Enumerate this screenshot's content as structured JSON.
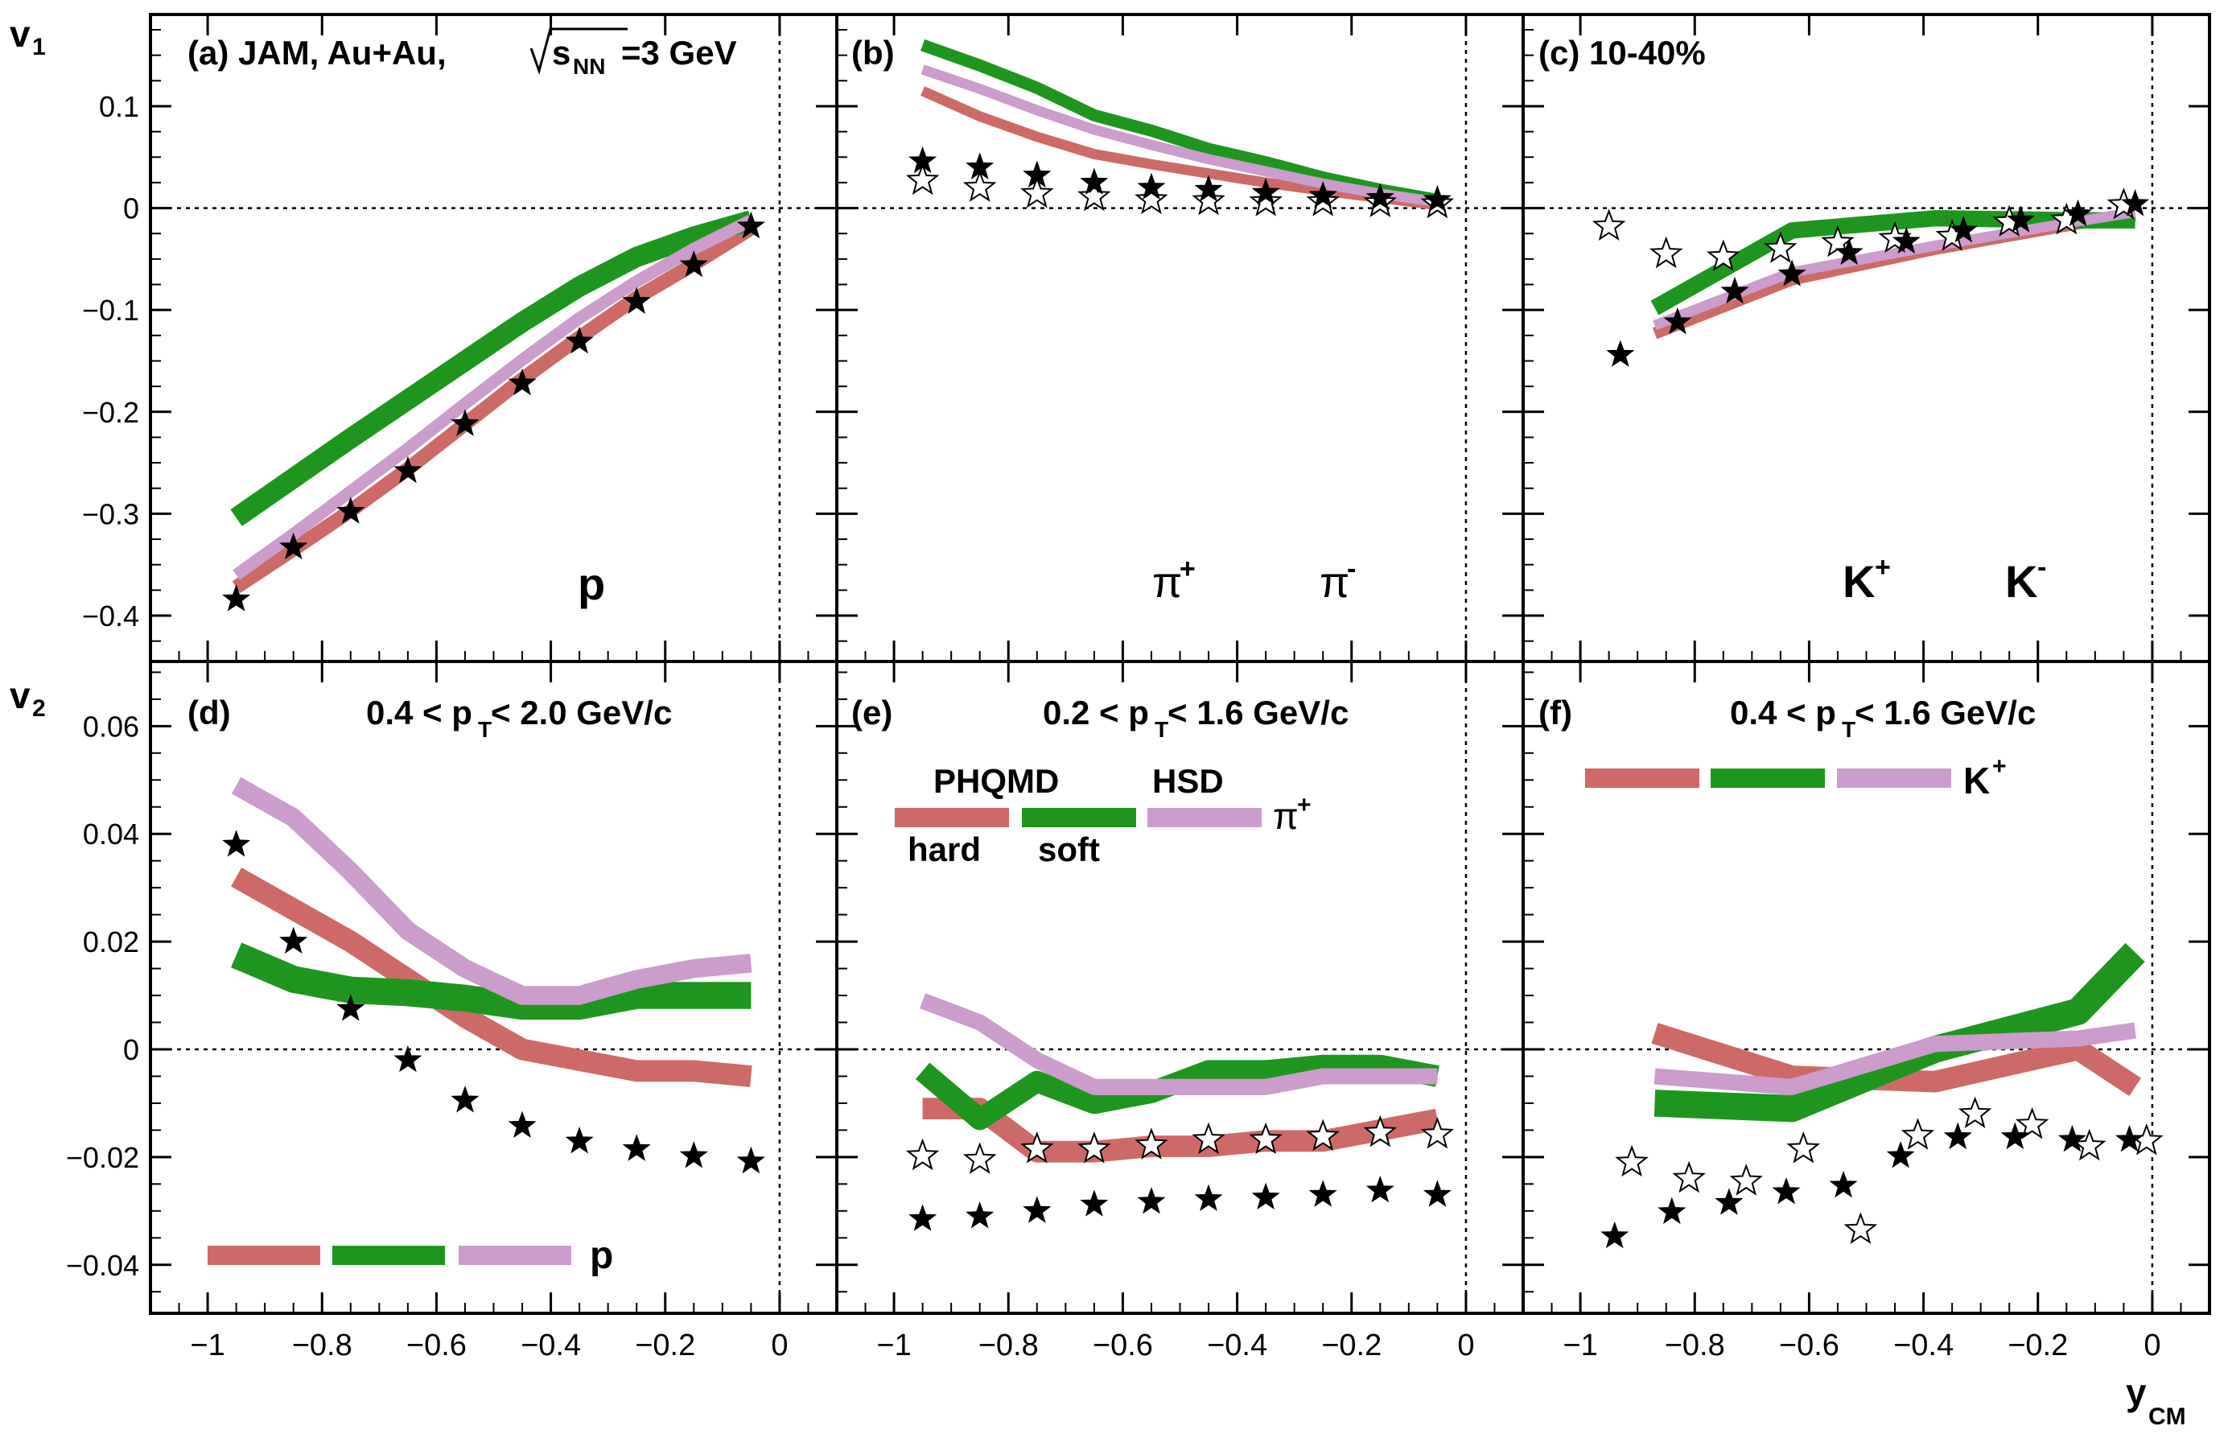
{
  "figure": {
    "y_axis_labels": {
      "v1": "v",
      "v1_sub": "1",
      "v2": "v",
      "v2_sub": "2"
    },
    "x_axis_label": {
      "main": "y",
      "sub": "CM"
    },
    "x_ticks": [
      -1,
      -0.8,
      -0.6,
      -0.4,
      -0.2,
      0
    ],
    "x_tick_labels": [
      "−1",
      "−0.8",
      "−0.6",
      "−0.4",
      "−0.2",
      "0"
    ],
    "v1_ticks": [
      0.1,
      0,
      -0.1,
      -0.2,
      -0.3,
      -0.4
    ],
    "v1_tick_labels": [
      "0.1",
      "0",
      "−0.1",
      "−0.2",
      "−0.3",
      "−0.4"
    ],
    "v2_ticks": [
      0.06,
      0.04,
      0.02,
      0,
      -0.02,
      -0.04
    ],
    "v2_tick_labels": [
      "0.06",
      "0.04",
      "0.02",
      "0",
      "−0.02",
      "−0.04"
    ],
    "colors": {
      "hard": "#cd6a68",
      "soft": "#1e961e",
      "hsd": "#cc9ccc",
      "marker": "#000000"
    }
  },
  "panel_text": {
    "a_label": "(a) JAM, Au+Au,",
    "a_sqrt_s": "s",
    "a_sqrt_sub": "NN",
    "a_energy": "=3 GeV",
    "b_label": "(b)",
    "c_label": "(c) 10-40%",
    "d_label": "(d)",
    "e_label": "(e)",
    "f_label": "(f)",
    "a_particle": "p",
    "b_particle_pos": "π",
    "b_particle_pos_sup": "+",
    "b_particle_neg": "π",
    "b_particle_neg_sup": "-",
    "c_particle_pos": "K",
    "c_particle_pos_sup": "+",
    "c_particle_neg": "K",
    "c_particle_neg_sup": "-",
    "d_pt_pre": "0.4 < p",
    "d_pt_sub": "T",
    "d_pt_post": " < 2.0 GeV/c",
    "e_pt_pre": "0.2 < p",
    "e_pt_sub": "T",
    "e_pt_post": " < 1.6 GeV/c",
    "f_pt_pre": "0.4 < p",
    "f_pt_sub": "T",
    "f_pt_post": " < 1.6 GeV/c",
    "legend_phqmd": "PHQMD",
    "legend_hsd": "HSD",
    "legend_hard": "hard",
    "legend_soft": "soft",
    "legend_e_particle": "π",
    "legend_e_particle_sup": "+",
    "legend_d_particle": "p",
    "legend_f_particle": "K",
    "legend_f_particle_sup": "+"
  },
  "chart_data": [
    {
      "id": "a",
      "type": "line",
      "quantity": "v1",
      "particle": "p",
      "title": "(a) JAM, Au+Au, sqrt(s_NN)=3 GeV",
      "xlabel": "y_CM",
      "ylabel": "v1",
      "xlim": [
        -1.1,
        0.1
      ],
      "ylim": [
        -0.445,
        0.19
      ],
      "markers_pos": {
        "x": [
          -0.95,
          -0.85,
          -0.75,
          -0.65,
          -0.55,
          -0.45,
          -0.35,
          -0.25,
          -0.15,
          -0.05
        ],
        "y": [
          -0.384,
          -0.333,
          -0.298,
          -0.258,
          -0.212,
          -0.172,
          -0.131,
          -0.092,
          -0.056,
          -0.018
        ]
      },
      "series": [
        {
          "name": "PHQMD hard",
          "color": "hard",
          "x": [
            -0.95,
            -0.85,
            -0.75,
            -0.65,
            -0.55,
            -0.45,
            -0.35,
            -0.25,
            -0.15,
            -0.05
          ],
          "y": [
            -0.372,
            -0.335,
            -0.297,
            -0.256,
            -0.212,
            -0.168,
            -0.127,
            -0.088,
            -0.055,
            -0.02
          ],
          "width": 0.014
        },
        {
          "name": "PHQMD soft",
          "color": "soft",
          "x": [
            -0.95,
            -0.85,
            -0.75,
            -0.65,
            -0.55,
            -0.45,
            -0.35,
            -0.25,
            -0.15,
            -0.05
          ],
          "y": [
            -0.304,
            -0.265,
            -0.226,
            -0.188,
            -0.15,
            -0.112,
            -0.077,
            -0.048,
            -0.028,
            -0.012
          ],
          "width": 0.02
        },
        {
          "name": "HSD",
          "color": "hsd",
          "x": [
            -0.95,
            -0.85,
            -0.75,
            -0.65,
            -0.55,
            -0.45,
            -0.35,
            -0.25,
            -0.15,
            -0.05
          ],
          "y": [
            -0.36,
            -0.32,
            -0.278,
            -0.236,
            -0.192,
            -0.149,
            -0.108,
            -0.072,
            -0.04,
            -0.012
          ],
          "width": 0.012
        }
      ]
    },
    {
      "id": "b",
      "type": "line",
      "quantity": "v1",
      "particle": "pi+ / pi-",
      "title": "(b)",
      "xlabel": "y_CM",
      "ylabel": "v1",
      "xlim": [
        -1.1,
        0.1
      ],
      "ylim": [
        -0.445,
        0.19
      ],
      "markers_pos": {
        "x": [
          -0.95,
          -0.85,
          -0.75,
          -0.65,
          -0.55,
          -0.45,
          -0.35,
          -0.25,
          -0.15,
          -0.05
        ],
        "y": [
          0.046,
          0.04,
          0.032,
          0.025,
          0.02,
          0.018,
          0.015,
          0.012,
          0.01,
          0.008
        ]
      },
      "markers_neg": {
        "x": [
          -0.95,
          -0.85,
          -0.75,
          -0.65,
          -0.55,
          -0.45,
          -0.35,
          -0.25,
          -0.15,
          -0.05
        ],
        "y": [
          0.027,
          0.02,
          0.014,
          0.011,
          0.008,
          0.007,
          0.006,
          0.006,
          0.005,
          0.004
        ]
      },
      "series": [
        {
          "name": "PHQMD hard",
          "color": "hard",
          "x": [
            -0.95,
            -0.85,
            -0.75,
            -0.65,
            -0.55,
            -0.45,
            -0.35,
            -0.25,
            -0.15,
            -0.05
          ],
          "y": [
            0.115,
            0.09,
            0.07,
            0.053,
            0.043,
            0.034,
            0.025,
            0.017,
            0.01,
            0.003
          ],
          "width": 0.01
        },
        {
          "name": "PHQMD soft",
          "color": "soft",
          "x": [
            -0.95,
            -0.85,
            -0.75,
            -0.65,
            -0.55,
            -0.45,
            -0.35,
            -0.25,
            -0.15,
            -0.05
          ],
          "y": [
            0.16,
            0.14,
            0.118,
            0.091,
            0.076,
            0.058,
            0.045,
            0.03,
            0.018,
            0.008
          ],
          "width": 0.012
        },
        {
          "name": "HSD",
          "color": "hsd",
          "x": [
            -0.95,
            -0.85,
            -0.75,
            -0.65,
            -0.55,
            -0.45,
            -0.35,
            -0.25,
            -0.15,
            -0.05
          ],
          "y": [
            0.136,
            0.117,
            0.096,
            0.077,
            0.062,
            0.048,
            0.036,
            0.024,
            0.014,
            0.006
          ],
          "width": 0.01
        }
      ]
    },
    {
      "id": "c",
      "type": "line",
      "quantity": "v1",
      "particle": "K+ / K-",
      "title": "(c) 10-40%",
      "xlabel": "y_CM",
      "ylabel": "v1",
      "xlim": [
        -1.1,
        0.1
      ],
      "ylim": [
        -0.445,
        0.19
      ],
      "markers_pos": {
        "x": [
          -0.93,
          -0.83,
          -0.73,
          -0.63,
          -0.53,
          -0.43,
          -0.33,
          -0.23,
          -0.13,
          -0.03
        ],
        "y": [
          -0.144,
          -0.112,
          -0.082,
          -0.065,
          -0.044,
          -0.033,
          -0.022,
          -0.012,
          -0.006,
          0.004
        ]
      },
      "markers_neg": {
        "x": [
          -0.95,
          -0.85,
          -0.75,
          -0.65,
          -0.55,
          -0.45,
          -0.35,
          -0.25,
          -0.15,
          -0.05
        ],
        "y": [
          -0.018,
          -0.045,
          -0.048,
          -0.04,
          -0.034,
          -0.03,
          -0.028,
          -0.014,
          -0.012,
          0.003
        ]
      },
      "series": [
        {
          "name": "PHQMD hard",
          "color": "hard",
          "x": [
            -0.87,
            -0.63,
            -0.38,
            -0.13,
            -0.03
          ],
          "y": [
            -0.123,
            -0.07,
            -0.04,
            -0.015,
            -0.007
          ],
          "width": 0.012
        },
        {
          "name": "PHQMD soft",
          "color": "soft",
          "x": [
            -0.87,
            -0.63,
            -0.38,
            -0.13,
            -0.03
          ],
          "y": [
            -0.098,
            -0.022,
            -0.01,
            -0.012,
            -0.012
          ],
          "width": 0.016
        },
        {
          "name": "HSD",
          "color": "hsd",
          "x": [
            -0.87,
            -0.63,
            -0.38,
            -0.13,
            -0.03
          ],
          "y": [
            -0.115,
            -0.063,
            -0.037,
            -0.013,
            -0.004
          ],
          "width": 0.01
        }
      ]
    },
    {
      "id": "d",
      "type": "line",
      "quantity": "v2",
      "particle": "p",
      "title": "(d) 0.4 < pT < 2.0 GeV/c",
      "xlabel": "y_CM",
      "ylabel": "v2",
      "xlim": [
        -1.1,
        0.1
      ],
      "ylim": [
        -0.049,
        0.072
      ],
      "markers_pos": {
        "x": [
          -0.95,
          -0.85,
          -0.75,
          -0.65,
          -0.55,
          -0.45,
          -0.35,
          -0.25,
          -0.15,
          -0.05
        ],
        "y": [
          0.038,
          0.02,
          0.0075,
          -0.002,
          -0.0095,
          -0.0142,
          -0.0171,
          -0.0185,
          -0.0198,
          -0.0208
        ]
      },
      "series": [
        {
          "name": "PHQMD hard",
          "color": "hard",
          "x": [
            -0.95,
            -0.85,
            -0.75,
            -0.65,
            -0.55,
            -0.45,
            -0.35,
            -0.25,
            -0.15,
            -0.05
          ],
          "y": [
            0.032,
            0.026,
            0.02,
            0.013,
            0.006,
            0.0,
            -0.002,
            -0.004,
            -0.004,
            -0.005
          ],
          "width": 0.004
        },
        {
          "name": "PHQMD soft",
          "color": "soft",
          "x": [
            -0.95,
            -0.85,
            -0.75,
            -0.65,
            -0.55,
            -0.45,
            -0.35,
            -0.25,
            -0.15,
            -0.05
          ],
          "y": [
            0.0175,
            0.013,
            0.011,
            0.0105,
            0.0095,
            0.008,
            0.008,
            0.01,
            0.01,
            0.01
          ],
          "width": 0.005
        },
        {
          "name": "HSD",
          "color": "hsd",
          "x": [
            -0.95,
            -0.85,
            -0.75,
            -0.65,
            -0.55,
            -0.45,
            -0.35,
            -0.25,
            -0.15,
            -0.05
          ],
          "y": [
            0.049,
            0.043,
            0.033,
            0.022,
            0.015,
            0.01,
            0.01,
            0.013,
            0.015,
            0.016
          ],
          "width": 0.0035
        }
      ]
    },
    {
      "id": "e",
      "type": "line",
      "quantity": "v2",
      "particle": "pi+ / pi-",
      "title": "(e) 0.2 < pT < 1.6 GeV/c",
      "xlabel": "y_CM",
      "ylabel": "v2",
      "xlim": [
        -1.1,
        0.1
      ],
      "ylim": [
        -0.049,
        0.072
      ],
      "markers_pos": {
        "x": [
          -0.95,
          -0.85,
          -0.75,
          -0.65,
          -0.55,
          -0.45,
          -0.35,
          -0.25,
          -0.15,
          -0.05
        ],
        "y": [
          -0.0315,
          -0.031,
          -0.03,
          -0.0288,
          -0.0283,
          -0.0278,
          -0.0275,
          -0.027,
          -0.0262,
          -0.027
        ]
      },
      "markers_neg": {
        "x": [
          -0.95,
          -0.85,
          -0.75,
          -0.65,
          -0.55,
          -0.45,
          -0.35,
          -0.25,
          -0.15,
          -0.05
        ],
        "y": [
          -0.0198,
          -0.0205,
          -0.0185,
          -0.0185,
          -0.0178,
          -0.0168,
          -0.0168,
          -0.0162,
          -0.0155,
          -0.0158
        ]
      },
      "series": [
        {
          "name": "PHQMD hard",
          "color": "hard",
          "x": [
            -0.95,
            -0.85,
            -0.75,
            -0.65,
            -0.55,
            -0.45,
            -0.35,
            -0.25,
            -0.15,
            -0.05
          ],
          "y": [
            -0.011,
            -0.011,
            -0.019,
            -0.019,
            -0.018,
            -0.018,
            -0.017,
            -0.017,
            -0.015,
            -0.013
          ],
          "width": 0.004
        },
        {
          "name": "PHQMD soft",
          "color": "soft",
          "x": [
            -0.95,
            -0.85,
            -0.75,
            -0.65,
            -0.55,
            -0.45,
            -0.35,
            -0.25,
            -0.15,
            -0.05
          ],
          "y": [
            -0.004,
            -0.013,
            -0.006,
            -0.01,
            -0.008,
            -0.004,
            -0.004,
            -0.003,
            -0.003,
            -0.005
          ],
          "width": 0.004
        },
        {
          "name": "HSD",
          "color": "hsd",
          "x": [
            -0.95,
            -0.85,
            -0.75,
            -0.65,
            -0.55,
            -0.45,
            -0.35,
            -0.25,
            -0.15,
            -0.05
          ],
          "y": [
            0.009,
            0.005,
            -0.002,
            -0.007,
            -0.007,
            -0.007,
            -0.007,
            -0.005,
            -0.005,
            -0.005
          ],
          "width": 0.003
        }
      ]
    },
    {
      "id": "f",
      "type": "line",
      "quantity": "v2",
      "particle": "K+ / K-",
      "title": "(f) 0.4 < pT < 1.6 GeV/c",
      "xlabel": "y_CM",
      "ylabel": "v2",
      "xlim": [
        -1.1,
        0.1
      ],
      "ylim": [
        -0.049,
        0.072
      ],
      "markers_pos": {
        "x": [
          -0.94,
          -0.84,
          -0.74,
          -0.64,
          -0.54,
          -0.44,
          -0.34,
          -0.24,
          -0.14,
          -0.04
        ],
        "y": [
          -0.0347,
          -0.0302,
          -0.0285,
          -0.0265,
          -0.0253,
          -0.0198,
          -0.0163,
          -0.0163,
          -0.0168,
          -0.0168
        ]
      },
      "markers_neg": {
        "x": [
          -0.91,
          -0.81,
          -0.71,
          -0.61,
          -0.51,
          -0.41,
          -0.31,
          -0.21,
          -0.11,
          -0.01
        ],
        "y": [
          -0.021,
          -0.024,
          -0.0245,
          -0.0185,
          -0.0335,
          -0.016,
          -0.012,
          -0.014,
          -0.018,
          -0.017
        ]
      },
      "series": [
        {
          "name": "PHQMD hard",
          "color": "hard",
          "x": [
            -0.87,
            -0.63,
            -0.38,
            -0.13,
            -0.03
          ],
          "y": [
            0.003,
            -0.005,
            -0.006,
            0.0,
            -0.007
          ],
          "width": 0.004
        },
        {
          "name": "PHQMD soft",
          "color": "soft",
          "x": [
            -0.87,
            -0.63,
            -0.38,
            -0.13,
            -0.03
          ],
          "y": [
            -0.01,
            -0.011,
            0.0,
            0.007,
            0.018
          ],
          "width": 0.005
        },
        {
          "name": "HSD",
          "color": "hsd",
          "x": [
            -0.87,
            -0.63,
            -0.38,
            -0.13,
            -0.03
          ],
          "y": [
            -0.005,
            -0.007,
            0.001,
            0.002,
            0.0035
          ],
          "width": 0.003
        }
      ]
    }
  ]
}
